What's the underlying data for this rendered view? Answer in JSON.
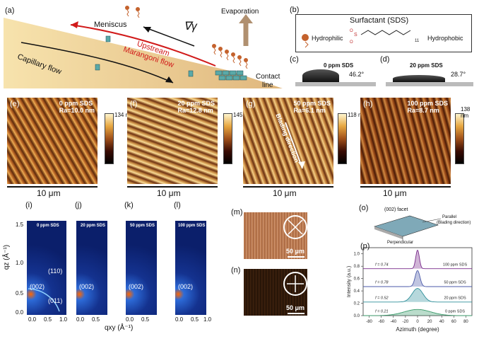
{
  "panel_a": {
    "label": "(a)",
    "meniscus": "Meniscus",
    "evaporation": "Evaporation",
    "gradient_symbol": "∇γ",
    "upstream": "Upstream",
    "marangoni": "Marangoni flow",
    "capillary": "Capillary flow",
    "contact1": "Contact",
    "contact2": "line"
  },
  "panel_b": {
    "label": "(b)",
    "title": "Surfactant (SDS)",
    "hydrophilic": "Hydrophilic",
    "hydrophobic": "Hydrophobic",
    "subscript": "11"
  },
  "panel_c": {
    "label": "(c)",
    "conc": "0 ppm SDS",
    "angle": "46.2°"
  },
  "panel_d": {
    "label": "(d)",
    "conc": "20 ppm SDS",
    "angle": "28.7°"
  },
  "afm": [
    {
      "label": "(e)",
      "conc": "0 ppm SDS",
      "ra": "Ra=10.0 nm",
      "cbar": "134 nm",
      "scale": "10 μm"
    },
    {
      "label": "(f)",
      "conc": "20 ppm SDS",
      "ra": "Ra=12.8 nm",
      "cbar": "145 nm",
      "scale": "10 μm"
    },
    {
      "label": "(g)",
      "conc": "50 ppm SDS",
      "ra": "Ra=6.1 nm",
      "cbar": "118 nm",
      "scale": "10 μm",
      "direction": "Blading direction"
    },
    {
      "label": "(h)",
      "conc": "100 ppm SDS",
      "ra": "Ra=8.7 nm",
      "cbar": "138 nm",
      "scale": "10 μm"
    }
  ],
  "giwaxs": {
    "panels": [
      {
        "label": "(i)",
        "conc": "0 ppm SDS",
        "peak002": "(002)",
        "peak110": "(110)",
        "peak011": "(011)"
      },
      {
        "label": "(j)",
        "conc": "20 ppm SDS",
        "peak002": "(002)"
      },
      {
        "label": "(k)",
        "conc": "50 ppm SDS",
        "peak002": "(002)"
      },
      {
        "label": "(l)",
        "conc": "100 ppm SDS",
        "peak002": "(002)"
      }
    ],
    "ylabel": "qz (Å⁻¹)",
    "xlabel": "qxy (Å⁻¹)",
    "yticks": [
      "1.5",
      "1.0",
      "0.5",
      "0.0"
    ],
    "xticks": [
      "0.0",
      "0.5",
      "1.0"
    ]
  },
  "pom": [
    {
      "label": "(m)",
      "scale": "50 μm"
    },
    {
      "label": "(n)",
      "scale": "50 μm"
    }
  ],
  "panel_o": {
    "label": "(o)",
    "facet": "(002) facet",
    "parallel": "Parallel",
    "blading": "(Blading direction)",
    "perpendicular": "Perpendicular"
  },
  "chart_data": {
    "type": "line",
    "label": "(p)",
    "xlabel": "Azimuth (degree)",
    "ylabel": "Intensity (a.u.)",
    "xlim": [
      -90,
      90
    ],
    "ylim": [
      0,
      1.1
    ],
    "xticks": [
      -80,
      -60,
      -40,
      -20,
      0,
      20,
      40,
      60,
      80
    ],
    "yticks": [
      0.0,
      0.2,
      0.4,
      0.6,
      0.8,
      1.0
    ],
    "series": [
      {
        "name": "100 ppm SDS",
        "f": "f = 0.74",
        "offset": 0.76,
        "amp": 0.3,
        "width": 3,
        "color": "#7a2c8c"
      },
      {
        "name": "50 ppm SDS",
        "f": "f = 0.78",
        "offset": 0.47,
        "amp": 0.26,
        "width": 4,
        "color": "#4b5aa8"
      },
      {
        "name": "20 ppm SDS",
        "f": "f = 0.52",
        "offset": 0.22,
        "amp": 0.22,
        "width": 9,
        "color": "#2f8f9a"
      },
      {
        "name": "0 ppm SDS",
        "f": "f = 0.21",
        "offset": 0.0,
        "amp": 0.1,
        "width": 22,
        "color": "#3a9a6a"
      }
    ]
  }
}
